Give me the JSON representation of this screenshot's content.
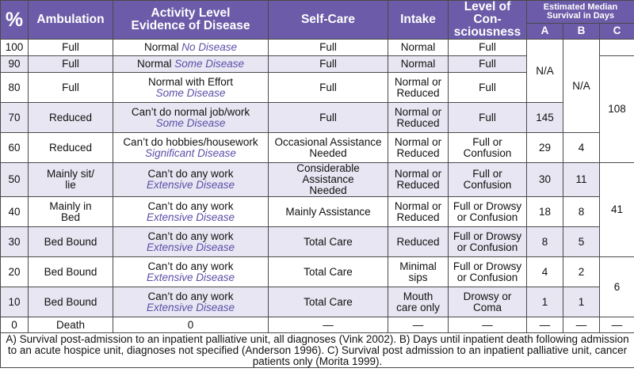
{
  "header": {
    "pct": "%",
    "ambulation": "Ambulation",
    "activity_line1": "Activity Level",
    "activity_line2": "Evidence of Disease",
    "selfcare": "Self-Care",
    "intake": "Intake",
    "loc_line1": "Level of Con-",
    "loc_line2": "sciousness",
    "est_line1": "Estimated Median",
    "est_line2": "Survival in Days",
    "col_a": "A",
    "col_b": "B",
    "col_c": "C"
  },
  "rows": [
    {
      "pct": "100",
      "ambulation": [
        "Full"
      ],
      "activity": "Normal",
      "evidence": "No Disease",
      "evidence_inline": true,
      "selfcare": [
        "Full"
      ],
      "intake": [
        "Normal"
      ],
      "loc": [
        "Full"
      ]
    },
    {
      "pct": "90",
      "ambulation": [
        "Full"
      ],
      "activity": "Normal",
      "evidence": "Some Disease",
      "evidence_inline": true,
      "selfcare": [
        "Full"
      ],
      "intake": [
        "Normal"
      ],
      "loc": [
        "Full"
      ]
    },
    {
      "pct": "80",
      "ambulation": [
        "Full"
      ],
      "activity": "Normal with Effort",
      "evidence": "Some Disease",
      "evidence_inline": false,
      "selfcare": [
        "Full"
      ],
      "intake": [
        "Normal or",
        "Reduced"
      ],
      "loc": [
        "Full"
      ]
    },
    {
      "pct": "70",
      "ambulation": [
        "Reduced"
      ],
      "activity": "Can’t do normal job/work",
      "evidence": "Some Disease",
      "evidence_inline": false,
      "selfcare": [
        "Full"
      ],
      "intake": [
        "Normal or",
        "Reduced"
      ],
      "loc": [
        "Full"
      ]
    },
    {
      "pct": "60",
      "ambulation": [
        "Reduced"
      ],
      "activity": "Can’t do hobbies/housework",
      "evidence": "Significant Disease",
      "evidence_inline": false,
      "selfcare": [
        "Occasional Assistance",
        "Needed"
      ],
      "intake": [
        "Normal or",
        "Reduced"
      ],
      "loc": [
        "Full or",
        "Confusion"
      ]
    },
    {
      "pct": "50",
      "ambulation": [
        "Mainly sit/",
        "lie"
      ],
      "activity": "Can’t do any work",
      "evidence": "Extensive Disease",
      "evidence_inline": false,
      "selfcare": [
        "Considerable Assistance",
        "Needed"
      ],
      "intake": [
        "Normal or",
        "Reduced"
      ],
      "loc": [
        "Full or",
        "Confusion"
      ]
    },
    {
      "pct": "40",
      "ambulation": [
        "Mainly in",
        "Bed"
      ],
      "activity": "Can’t do any work",
      "evidence": "Extensive Disease",
      "evidence_inline": false,
      "selfcare": [
        "Mainly Assistance"
      ],
      "intake": [
        "Normal or",
        "Reduced"
      ],
      "loc": [
        "Full or Drowsy",
        "or Confusion"
      ]
    },
    {
      "pct": "30",
      "ambulation": [
        "Bed Bound"
      ],
      "activity": "Can’t do any work",
      "evidence": "Extensive Disease",
      "evidence_inline": false,
      "selfcare": [
        "Total Care"
      ],
      "intake": [
        "Reduced"
      ],
      "loc": [
        "Full or Drowsy",
        "or Confusion"
      ]
    },
    {
      "pct": "20",
      "ambulation": [
        "Bed Bound"
      ],
      "activity": "Can’t do any work",
      "evidence": "Extensive Disease",
      "evidence_inline": false,
      "selfcare": [
        "Total Care"
      ],
      "intake": [
        "Minimal",
        "sips"
      ],
      "loc": [
        "Full or Drowsy",
        "or Confusion"
      ]
    },
    {
      "pct": "10",
      "ambulation": [
        "Bed Bound"
      ],
      "activity": "Can’t do any work",
      "evidence": "Extensive Disease",
      "evidence_inline": false,
      "selfcare": [
        "Total Care"
      ],
      "intake": [
        "Mouth",
        "care only"
      ],
      "loc": [
        "Drowsy or",
        "Coma"
      ]
    },
    {
      "pct": "0",
      "ambulation": [
        "Death"
      ],
      "activity": "0",
      "evidence": "",
      "evidence_inline": true,
      "selfcare": [
        "—"
      ],
      "intake": [
        "—"
      ],
      "loc": [
        "—"
      ]
    }
  ],
  "survival": {
    "a": [
      {
        "start": 0,
        "span": 3,
        "text": "N/A"
      },
      {
        "start": 3,
        "span": 1,
        "text": "145"
      },
      {
        "start": 4,
        "span": 1,
        "text": "29"
      },
      {
        "start": 5,
        "span": 1,
        "text": "30"
      },
      {
        "start": 6,
        "span": 1,
        "text": "18"
      },
      {
        "start": 7,
        "span": 1,
        "text": "8"
      },
      {
        "start": 8,
        "span": 1,
        "text": "4"
      },
      {
        "start": 9,
        "span": 1,
        "text": "1"
      },
      {
        "start": 10,
        "span": 1,
        "text": "—"
      }
    ],
    "b": [
      {
        "start": 0,
        "span": 4,
        "text": "N/A"
      },
      {
        "start": 4,
        "span": 1,
        "text": "4"
      },
      {
        "start": 5,
        "span": 1,
        "text": "11"
      },
      {
        "start": 6,
        "span": 1,
        "text": "8"
      },
      {
        "start": 7,
        "span": 1,
        "text": "5"
      },
      {
        "start": 8,
        "span": 1,
        "text": "2"
      },
      {
        "start": 9,
        "span": 1,
        "text": "1"
      },
      {
        "start": 10,
        "span": 1,
        "text": "—"
      }
    ],
    "c": [
      {
        "start": 0,
        "span": 1,
        "text": ""
      },
      {
        "start": 1,
        "span": 4,
        "text": "108"
      },
      {
        "start": 5,
        "span": 3,
        "text": "41"
      },
      {
        "start": 8,
        "span": 2,
        "text": "6"
      },
      {
        "start": 10,
        "span": 1,
        "text": "—"
      }
    ]
  },
  "footnote": "A) Survival post-admission to an inpatient palliative unit, all diagnoses (Vink 2002). B) Days until inpatient death following admission to an acute hospice unit, diagnoses not specified (Anderson 1996). C) Survival post admission to an inpatient palliative unit, cancer patients only (Morita 1999).",
  "colors": {
    "header_bg": "#6b5ba8",
    "header_text": "#ffffff",
    "row_shade": "#e7e6f2",
    "evidence_text": "#5a4fa8",
    "border": "#4a4a4a"
  }
}
